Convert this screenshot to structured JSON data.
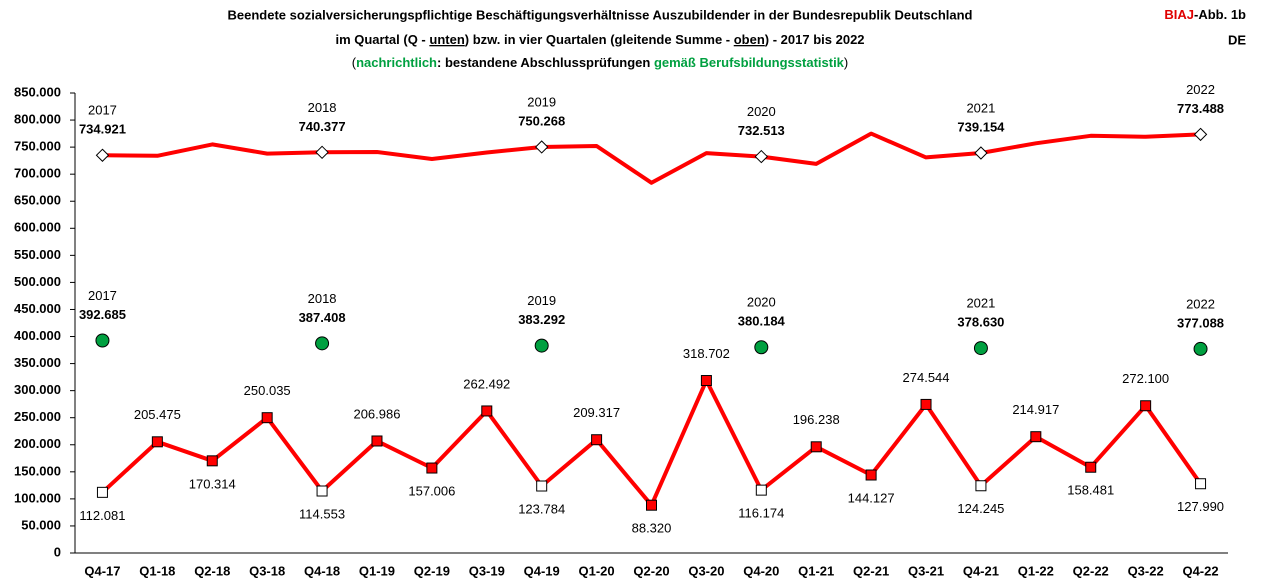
{
  "chart_data": {
    "type": "line",
    "title": "Beendete sozialversicherungspflichtige Beschäftigungsverhältnisse Auszubildender in der Bundesrepublik Deutschland",
    "subtitle": [
      "im Quartal (Q - ",
      "unten",
      ") bzw. in vier Quartalen (gleitende Summe - ",
      "oben",
      ") - 2017 bis 2022"
    ],
    "note": [
      "(",
      "nachrichtlich",
      ": bestandene Abschlussprüfungen ",
      "gemäß Berufsbildungsstatistik",
      ")"
    ],
    "source": [
      "BIAJ",
      "-Abb. 1b"
    ],
    "region": "DE",
    "year_labels": [
      "2017",
      "2018",
      "2019",
      "2020",
      "2021",
      "2022"
    ],
    "categories": [
      "Q4-17",
      "Q1-18",
      "Q2-18",
      "Q3-18",
      "Q4-18",
      "Q1-19",
      "Q2-19",
      "Q3-19",
      "Q4-19",
      "Q1-20",
      "Q2-20",
      "Q3-20",
      "Q4-20",
      "Q1-21",
      "Q2-21",
      "Q3-21",
      "Q4-21",
      "Q1-22",
      "Q2-22",
      "Q3-22",
      "Q4-22"
    ],
    "series": [
      {
        "color": "#ff0000",
        "marker": "diamond",
        "values": [
          734921,
          734000,
          755000,
          738000,
          740377,
          741000,
          728000,
          740000,
          750268,
          752000,
          684000,
          739000,
          732513,
          719000,
          775000,
          731000,
          739154,
          757000,
          771000,
          769000,
          773488
        ],
        "value_labels": [
          "734.921",
          null,
          null,
          null,
          "740.377",
          null,
          null,
          null,
          "750.268",
          null,
          null,
          null,
          "732.513",
          null,
          null,
          null,
          "739.154",
          null,
          null,
          null,
          "773.488"
        ]
      },
      {
        "color": "#ff0000",
        "marker": "square",
        "values": [
          112081,
          205475,
          170314,
          250035,
          114553,
          206986,
          157006,
          262492,
          123784,
          209317,
          88320,
          318702,
          116174,
          196238,
          144127,
          274544,
          124245,
          214917,
          158481,
          272100,
          127990
        ],
        "value_labels": [
          "112.081",
          "205.475",
          "170.314",
          "250.035",
          "114.553",
          "206.986",
          "157.006",
          "262.492",
          "123.784",
          "209.317",
          "88.320",
          "318.702",
          "116.174",
          "196.238",
          "144.127",
          "274.544",
          "124.245",
          "214.917",
          "158.481",
          "272.100",
          "127.990"
        ]
      },
      {
        "color": "#00a040",
        "marker": "circle",
        "values": [
          392685,
          null,
          null,
          null,
          387408,
          null,
          null,
          null,
          383292,
          null,
          null,
          null,
          380184,
          null,
          null,
          null,
          378630,
          null,
          null,
          null,
          377088
        ],
        "value_labels": [
          "392.685",
          null,
          null,
          null,
          "387.408",
          null,
          null,
          null,
          "383.292",
          null,
          null,
          null,
          "380.184",
          null,
          null,
          null,
          "378.630",
          null,
          null,
          null,
          "377.088"
        ]
      }
    ],
    "ylim": [
      0,
      850000
    ],
    "yticks": [
      0,
      {
        "value": 50000,
        "label": "50.000"
      },
      {
        "value": 100000,
        "label": "100.000"
      },
      {
        "value": 150000,
        "label": "150.000"
      },
      {
        "value": 200000,
        "label": "200.000"
      },
      {
        "value": 250000,
        "label": "250.000"
      },
      {
        "value": 300000,
        "label": "300.000"
      },
      {
        "value": 350000,
        "label": "350.000"
      },
      {
        "value": 400000,
        "label": "400.000"
      },
      {
        "value": 450000,
        "label": "450.000"
      },
      {
        "value": 500000,
        "label": "500.000"
      },
      {
        "value": 550000,
        "label": "550.000"
      },
      {
        "value": 600000,
        "label": "600.000"
      },
      {
        "value": 650000,
        "label": "650.000"
      },
      {
        "value": 700000,
        "label": "700.000"
      },
      {
        "value": 750000,
        "label": "750.000"
      },
      {
        "value": 800000,
        "label": "800.000"
      },
      {
        "value": 850000,
        "label": "850.000"
      }
    ],
    "grid": false
  }
}
